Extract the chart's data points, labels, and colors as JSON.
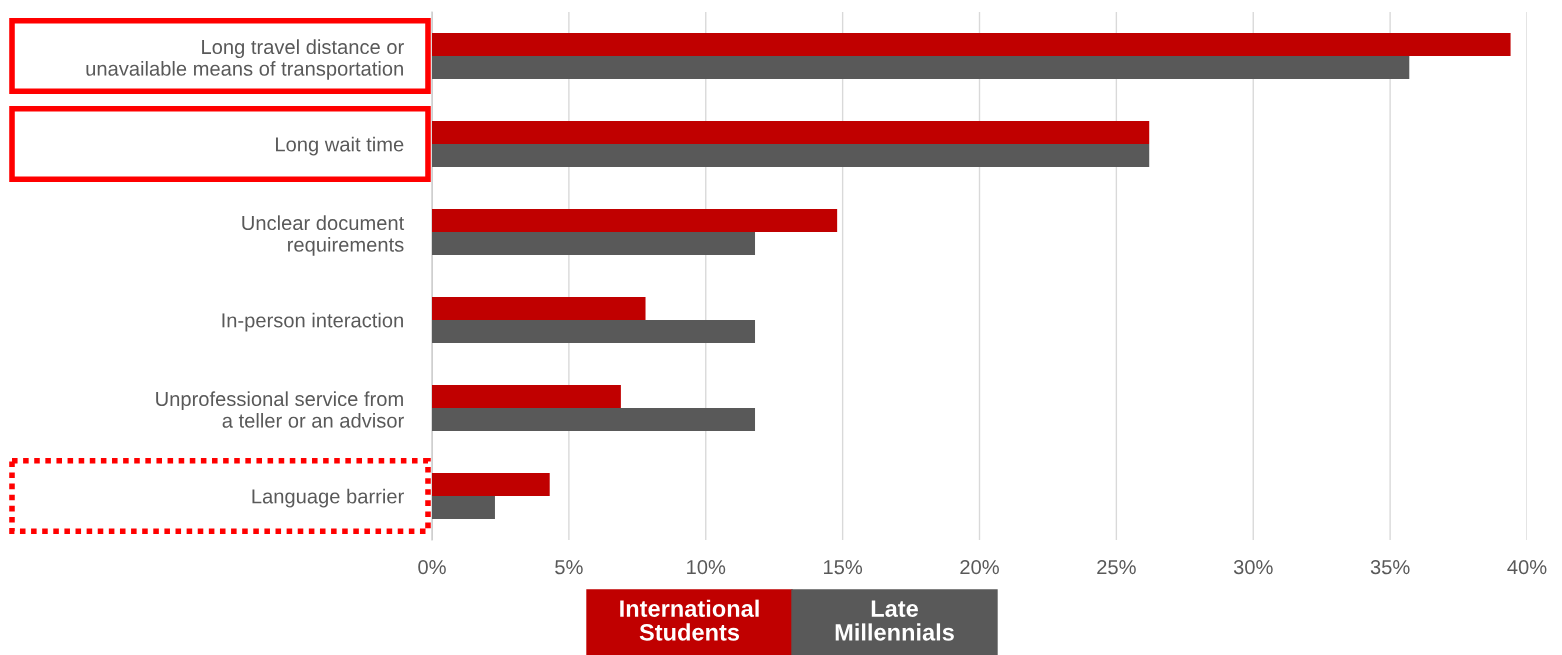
{
  "chart_data": {
    "type": "bar",
    "orientation": "horizontal",
    "categories": [
      "Long travel distance or\nunavailable means of transportation",
      "Long wait time",
      "Unclear document\nrequirements",
      "In-person interaction",
      "Unprofessional service from\na teller or an advisor",
      "Language barrier"
    ],
    "series": [
      {
        "name": "International\nStudents",
        "color": "#c00000",
        "values": [
          39.4,
          26.2,
          14.8,
          7.8,
          6.9,
          4.3
        ]
      },
      {
        "name": "Late\nMillennials",
        "color": "#595959",
        "values": [
          35.7,
          26.2,
          11.8,
          11.8,
          11.8,
          2.3
        ]
      }
    ],
    "xlim": [
      0,
      40
    ],
    "xticks": [
      {
        "value": 0,
        "label": "0%"
      },
      {
        "value": 5,
        "label": "5%"
      },
      {
        "value": 10,
        "label": "10%"
      },
      {
        "value": 15,
        "label": "15%"
      },
      {
        "value": 20,
        "label": "20%"
      },
      {
        "value": 25,
        "label": "25%"
      },
      {
        "value": 30,
        "label": "30%"
      },
      {
        "value": 35,
        "label": "35%"
      },
      {
        "value": 40,
        "label": "40%"
      }
    ],
    "grid": "x",
    "legend": "bottom"
  }
}
